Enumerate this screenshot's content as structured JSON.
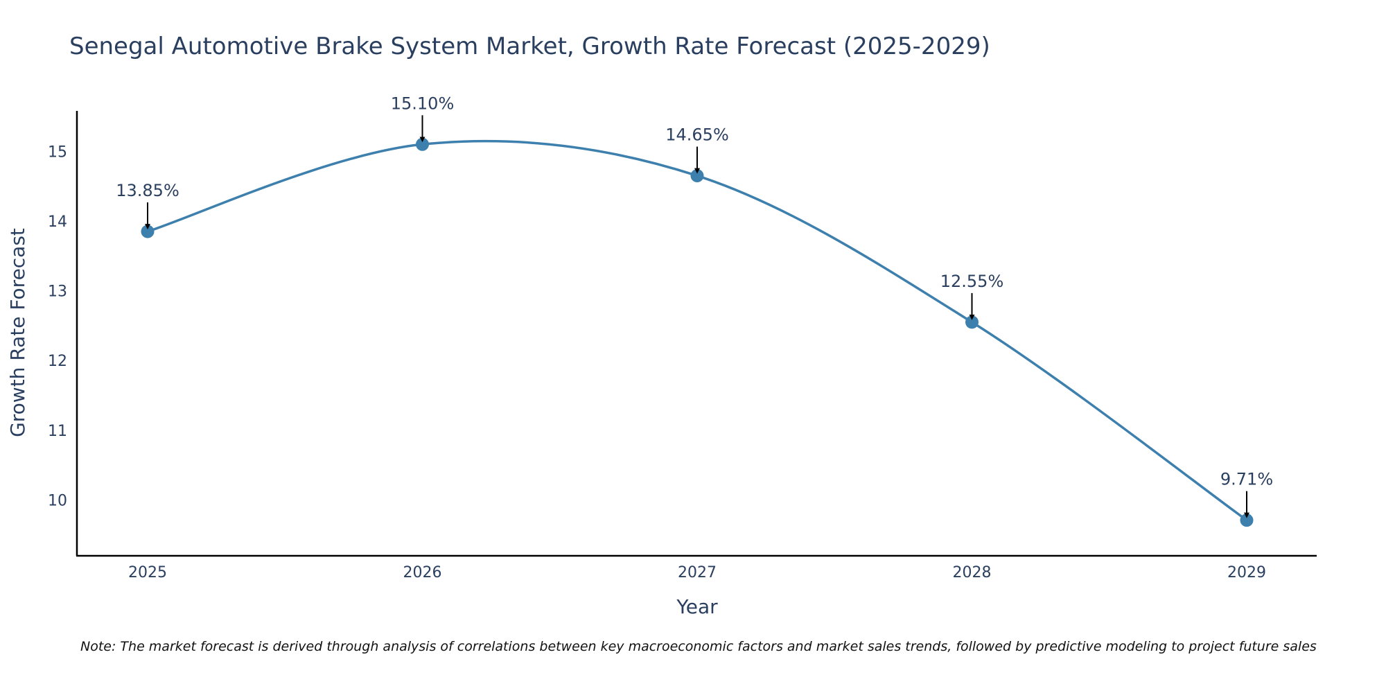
{
  "chart_data": {
    "type": "line",
    "title": "Senegal Automotive Brake System Market, Growth Rate Forecast (2025-2029)",
    "xlabel": "Year",
    "ylabel": "Growth Rate Forecast",
    "categories": [
      "2025",
      "2026",
      "2027",
      "2028",
      "2029"
    ],
    "values": [
      13.85,
      15.1,
      14.65,
      12.55,
      9.71
    ],
    "data_labels": [
      "13.85%",
      "15.10%",
      "14.65%",
      "12.55%",
      "9.71%"
    ],
    "y_ticks": [
      10,
      11,
      12,
      13,
      14,
      15
    ],
    "ylim": [
      9.2,
      15.58
    ],
    "line_shape": "spline",
    "grid": false,
    "legend": "none",
    "series_color": "#3d7fad",
    "arrow_color": "#000000",
    "axis_color": "#000000"
  },
  "note": "Note: The market forecast is derived through analysis of correlations between key macroeconomic factors and market sales trends, followed by predictive modeling to project future sales"
}
